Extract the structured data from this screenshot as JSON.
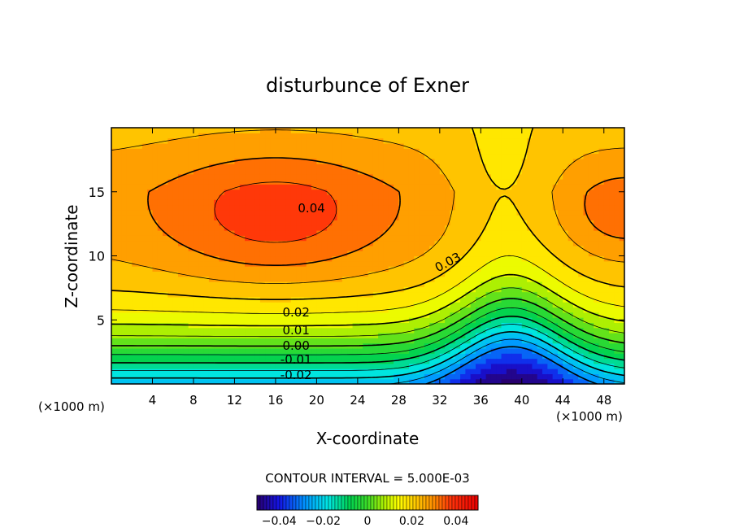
{
  "chart_data": {
    "type": "contour",
    "title": "disturbunce of Exner",
    "xlabel": "X-coordinate",
    "ylabel": "Z-coordinate",
    "x_unit": "(×1000 m)",
    "y_unit": "(×1000 m)",
    "xlim": [
      0,
      50
    ],
    "ylim": [
      0,
      20
    ],
    "x_ticks": [
      4,
      8,
      12,
      16,
      20,
      24,
      28,
      32,
      36,
      40,
      44,
      48
    ],
    "y_ticks": [
      5,
      10,
      15
    ],
    "contour_interval_text": "CONTOUR INTERVAL = 5.000E-03",
    "contour_interval": 0.005,
    "contour_labels": [
      "0.04",
      "0.03",
      "0.02",
      "0.01",
      "0.00",
      "-0.01",
      "-0.02"
    ],
    "colorbar": {
      "range": [
        -0.05,
        0.05
      ],
      "tick_values": [
        -0.04,
        -0.02,
        0,
        0.02,
        0.04
      ],
      "tick_labels": [
        "−0.04",
        "−0.02",
        "0",
        "0.02",
        "0.04"
      ]
    }
  }
}
